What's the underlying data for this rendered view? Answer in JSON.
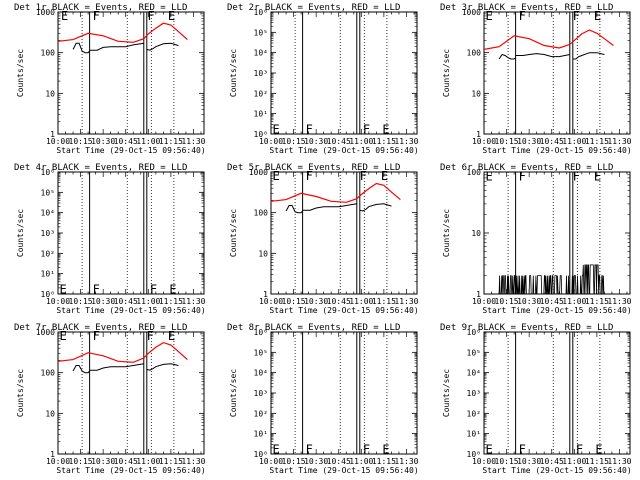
{
  "figure": {
    "xlabel": "Start Time (29-Oct-15 09:56:40)",
    "ylabel": "Counts/sec",
    "x_tick_labels": [
      "10:00",
      "10:15",
      "10:30",
      "10:45",
      "11:00",
      "11:15",
      "11:30"
    ],
    "x_tick_minutes": [
      0,
      15,
      30,
      45,
      60,
      75,
      90
    ],
    "x_range_minutes": [
      0,
      97
    ],
    "colors": {
      "events": "#000000",
      "lld": "#ff0000",
      "frame": "#000000"
    }
  },
  "chart_data": [
    {
      "type": "line",
      "detector": "Det 1r",
      "title": "Det 1r  BLACK = Events, RED = LLD",
      "ylim": [
        1,
        1000
      ],
      "yscale": "log",
      "y_tick_labels": [
        "1",
        "10",
        "100",
        "1000"
      ],
      "y_tick_values": [
        1,
        10,
        100,
        1000
      ],
      "solid_lines_minutes": [
        21,
        57,
        59
      ],
      "dotted_lines_minutes": [
        16,
        46,
        62,
        77
      ],
      "markers": [
        {
          "label": "E",
          "x_minutes": 2,
          "y": 800
        },
        {
          "label": "F",
          "x_minutes": 23,
          "y": 800
        },
        {
          "label": "F",
          "x_minutes": 59.5,
          "y": 800
        },
        {
          "label": "E",
          "x_minutes": 73,
          "y": 800
        }
      ],
      "series": [
        {
          "name": "LLD",
          "color": "#ff0000",
          "x": [
            0,
            10,
            20,
            30,
            40,
            50,
            57,
            60,
            65,
            70,
            75,
            80,
            86
          ],
          "y": [
            190,
            210,
            300,
            260,
            190,
            180,
            220,
            290,
            400,
            530,
            480,
            330,
            210
          ]
        },
        {
          "name": "Events",
          "color": "#000000",
          "segments": [
            {
              "x": [
                10,
                12,
                14,
                16,
                18,
                20,
                21
              ],
              "y": [
                120,
                170,
                170,
                110,
                100,
                100,
                110
              ]
            },
            {
              "x": [
                21,
                26,
                30,
                35,
                40,
                45,
                50,
                57
              ],
              "y": [
                115,
                115,
                135,
                140,
                140,
                140,
                155,
                170
              ]
            },
            {
              "x": [
                59,
                61,
                63,
                65,
                70,
                75,
                80
              ],
              "y": [
                120,
                115,
                125,
                140,
                165,
                170,
                150
              ]
            }
          ]
        }
      ]
    },
    {
      "type": "line",
      "detector": "Det 2r",
      "title": "Det 2r  BLACK = Events, RED = LLD",
      "ylim": [
        1,
        1000000
      ],
      "yscale": "log",
      "y_tick_labels": [
        "10⁰",
        "10¹",
        "10²",
        "10³",
        "10⁴",
        "10⁵",
        "10⁶"
      ],
      "y_tick_values": [
        1,
        10,
        100,
        1000,
        10000,
        100000,
        1000000
      ],
      "solid_lines_minutes": [
        21,
        57,
        59
      ],
      "dotted_lines_minutes": [
        16,
        46,
        62,
        77
      ],
      "markers": [
        {
          "label": "E",
          "x_minutes": 1,
          "y": 1.7
        },
        {
          "label": "F",
          "x_minutes": 23,
          "y": 1.7
        },
        {
          "label": "F",
          "x_minutes": 61,
          "y": 1.7
        },
        {
          "label": "E",
          "x_minutes": 74,
          "y": 1.7
        }
      ],
      "series": []
    },
    {
      "type": "line",
      "detector": "Det 3r",
      "title": "Det 3r  BLACK = Events, RED = LLD",
      "ylim": [
        1,
        1000
      ],
      "yscale": "log",
      "y_tick_labels": [
        "1",
        "10",
        "100",
        "1000"
      ],
      "y_tick_values": [
        1,
        10,
        100,
        1000
      ],
      "solid_lines_minutes": [
        21,
        57,
        59
      ],
      "dotted_lines_minutes": [
        16,
        46,
        62,
        77
      ],
      "markers": [
        {
          "label": "E",
          "x_minutes": 1,
          "y": 800
        },
        {
          "label": "F",
          "x_minutes": 23,
          "y": 800
        },
        {
          "label": "F",
          "x_minutes": 59,
          "y": 800
        },
        {
          "label": "E",
          "x_minutes": 73,
          "y": 800
        }
      ],
      "series": [
        {
          "name": "LLD",
          "color": "#ff0000",
          "x": [
            0,
            10,
            20,
            30,
            40,
            50,
            57,
            60,
            65,
            70,
            75,
            80,
            86
          ],
          "y": [
            120,
            140,
            260,
            220,
            150,
            130,
            160,
            200,
            290,
            360,
            300,
            220,
            150
          ]
        },
        {
          "name": "Events",
          "color": "#000000",
          "segments": [
            {
              "x": [
                10,
                12,
                14,
                16,
                18,
                20,
                21
              ],
              "y": [
                70,
                90,
                85,
                75,
                70,
                70,
                75
              ]
            },
            {
              "x": [
                21,
                26,
                30,
                35,
                40,
                45,
                50,
                57
              ],
              "y": [
                85,
                85,
                90,
                95,
                90,
                80,
                80,
                90
              ]
            },
            {
              "x": [
                59,
                61,
                63,
                65,
                70,
                75,
                80
              ],
              "y": [
                70,
                70,
                80,
                85,
                100,
                100,
                90
              ]
            }
          ]
        }
      ]
    },
    {
      "type": "line",
      "detector": "Det 4r",
      "title": "Det 4r  BLACK = Events, RED = LLD",
      "ylim": [
        1,
        1000000
      ],
      "yscale": "log",
      "y_tick_labels": [
        "10⁰",
        "10¹",
        "10²",
        "10³",
        "10⁴",
        "10⁵",
        "10⁶"
      ],
      "y_tick_values": [
        1,
        10,
        100,
        1000,
        10000,
        100000,
        1000000
      ],
      "solid_lines_minutes": [
        21,
        57,
        59
      ],
      "dotted_lines_minutes": [
        16,
        46,
        62,
        77
      ],
      "markers": [
        {
          "label": "E",
          "x_minutes": 1,
          "y": 1.7
        },
        {
          "label": "F",
          "x_minutes": 23,
          "y": 1.7
        },
        {
          "label": "F",
          "x_minutes": 61,
          "y": 1.7
        },
        {
          "label": "E",
          "x_minutes": 74,
          "y": 1.7
        }
      ],
      "series": []
    },
    {
      "type": "line",
      "detector": "Det 5r",
      "title": "Det 5r  BLACK = Events, RED = LLD",
      "ylim": [
        1,
        1000
      ],
      "yscale": "log",
      "y_tick_labels": [
        "1",
        "10",
        "100",
        "1000"
      ],
      "y_tick_values": [
        1,
        10,
        100,
        1000
      ],
      "solid_lines_minutes": [
        21,
        57,
        59
      ],
      "dotted_lines_minutes": [
        16,
        46,
        62,
        77
      ],
      "markers": [
        {
          "label": "E",
          "x_minutes": 1,
          "y": 800
        },
        {
          "label": "F",
          "x_minutes": 23,
          "y": 800
        },
        {
          "label": "F",
          "x_minutes": 59,
          "y": 800
        },
        {
          "label": "E",
          "x_minutes": 73,
          "y": 800
        }
      ],
      "series": [
        {
          "name": "LLD",
          "color": "#ff0000",
          "x": [
            0,
            10,
            20,
            30,
            40,
            50,
            57,
            60,
            65,
            70,
            75,
            80,
            86
          ],
          "y": [
            190,
            210,
            300,
            250,
            190,
            180,
            220,
            280,
            390,
            520,
            470,
            320,
            210
          ]
        },
        {
          "name": "Events",
          "color": "#000000",
          "segments": [
            {
              "x": [
                10,
                12,
                14,
                16,
                18,
                20,
                21
              ],
              "y": [
                110,
                150,
                150,
                105,
                100,
                100,
                110
              ]
            },
            {
              "x": [
                21,
                26,
                30,
                35,
                40,
                45,
                50,
                57
              ],
              "y": [
                115,
                115,
                130,
                140,
                140,
                140,
                150,
                165
              ]
            },
            {
              "x": [
                59,
                61,
                63,
                65,
                70,
                75,
                80
              ],
              "y": [
                115,
                110,
                120,
                140,
                160,
                165,
                145
              ]
            }
          ]
        }
      ]
    },
    {
      "type": "line",
      "detector": "Det 6r",
      "title": "Det 6r  BLACK = Events, RED = LLD",
      "ylim": [
        1,
        100
      ],
      "yscale": "log",
      "y_tick_labels": [
        "1",
        "10",
        "100"
      ],
      "y_tick_values": [
        1,
        10,
        100
      ],
      "solid_lines_minutes": [
        21,
        57,
        59
      ],
      "dotted_lines_minutes": [
        16,
        46,
        62,
        77
      ],
      "markers": [
        {
          "label": "E",
          "x_minutes": 1,
          "y": 85
        },
        {
          "label": "F",
          "x_minutes": 23,
          "y": 85
        },
        {
          "label": "F",
          "x_minutes": 59,
          "y": 85
        },
        {
          "label": "E",
          "x_minutes": 73,
          "y": 85
        }
      ],
      "series": [
        {
          "name": "Events",
          "color": "#000000",
          "style": "noise",
          "x_start": 10,
          "x_end": 80,
          "low": 1,
          "high": 2,
          "high_region": [
            66,
            76
          ],
          "high_region_high": 3
        }
      ]
    },
    {
      "type": "line",
      "detector": "Det 7r",
      "title": "Det 7r  BLACK = Events, RED = LLD",
      "ylim": [
        1,
        1000
      ],
      "yscale": "log",
      "y_tick_labels": [
        "1",
        "10",
        "100",
        "1000"
      ],
      "y_tick_values": [
        1,
        10,
        100,
        1000
      ],
      "solid_lines_minutes": [
        21,
        57,
        59
      ],
      "dotted_lines_minutes": [
        16,
        46,
        62,
        77
      ],
      "markers": [
        {
          "label": "E",
          "x_minutes": 1,
          "y": 800
        },
        {
          "label": "F",
          "x_minutes": 23,
          "y": 800
        },
        {
          "label": "F",
          "x_minutes": 59,
          "y": 800
        },
        {
          "label": "E",
          "x_minutes": 73,
          "y": 800
        }
      ],
      "series": [
        {
          "name": "LLD",
          "color": "#ff0000",
          "x": [
            0,
            10,
            20,
            30,
            40,
            50,
            57,
            60,
            65,
            70,
            75,
            80,
            86
          ],
          "y": [
            190,
            210,
            310,
            260,
            190,
            180,
            230,
            300,
            420,
            550,
            480,
            330,
            210
          ]
        },
        {
          "name": "Events",
          "color": "#000000",
          "segments": [
            {
              "x": [
                10,
                12,
                14,
                16,
                18,
                20,
                21
              ],
              "y": [
                110,
                150,
                150,
                110,
                100,
                100,
                110
              ]
            },
            {
              "x": [
                21,
                26,
                30,
                35,
                40,
                45,
                50,
                57
              ],
              "y": [
                115,
                115,
                130,
                140,
                140,
                140,
                150,
                165
              ]
            },
            {
              "x": [
                59,
                61,
                63,
                65,
                70,
                75,
                80
              ],
              "y": [
                120,
                115,
                125,
                140,
                160,
                165,
                150
              ]
            }
          ]
        }
      ]
    },
    {
      "type": "line",
      "detector": "Det 8r",
      "title": "Det 8r  BLACK = Events, RED = LLD",
      "ylim": [
        1,
        1000000
      ],
      "yscale": "log",
      "y_tick_labels": [
        "10⁰",
        "10¹",
        "10²",
        "10³",
        "10⁴",
        "10⁵",
        "10⁶"
      ],
      "y_tick_values": [
        1,
        10,
        100,
        1000,
        10000,
        100000,
        1000000
      ],
      "solid_lines_minutes": [
        21,
        57,
        59
      ],
      "dotted_lines_minutes": [
        16,
        46,
        62,
        77
      ],
      "markers": [
        {
          "label": "E",
          "x_minutes": 1,
          "y": 1.7
        },
        {
          "label": "F",
          "x_minutes": 23,
          "y": 1.7
        },
        {
          "label": "F",
          "x_minutes": 61,
          "y": 1.7
        },
        {
          "label": "E",
          "x_minutes": 74,
          "y": 1.7
        }
      ],
      "series": []
    },
    {
      "type": "line",
      "detector": "Det 9r",
      "title": "Det 9r  BLACK = Events, RED = LLD",
      "ylim": [
        1,
        1000000
      ],
      "yscale": "log",
      "y_tick_labels": [
        "10⁰",
        "10¹",
        "10²",
        "10³",
        "10⁴",
        "10⁵",
        "10⁶"
      ],
      "y_tick_values": [
        1,
        10,
        100,
        1000,
        10000,
        100000,
        1000000
      ],
      "solid_lines_minutes": [
        21,
        57,
        59
      ],
      "dotted_lines_minutes": [
        16,
        46,
        62,
        77
      ],
      "markers": [
        {
          "label": "E",
          "x_minutes": 1,
          "y": 1.7
        },
        {
          "label": "F",
          "x_minutes": 23,
          "y": 1.7
        },
        {
          "label": "F",
          "x_minutes": 61,
          "y": 1.7
        },
        {
          "label": "E",
          "x_minutes": 74,
          "y": 1.7
        }
      ],
      "series": []
    }
  ]
}
